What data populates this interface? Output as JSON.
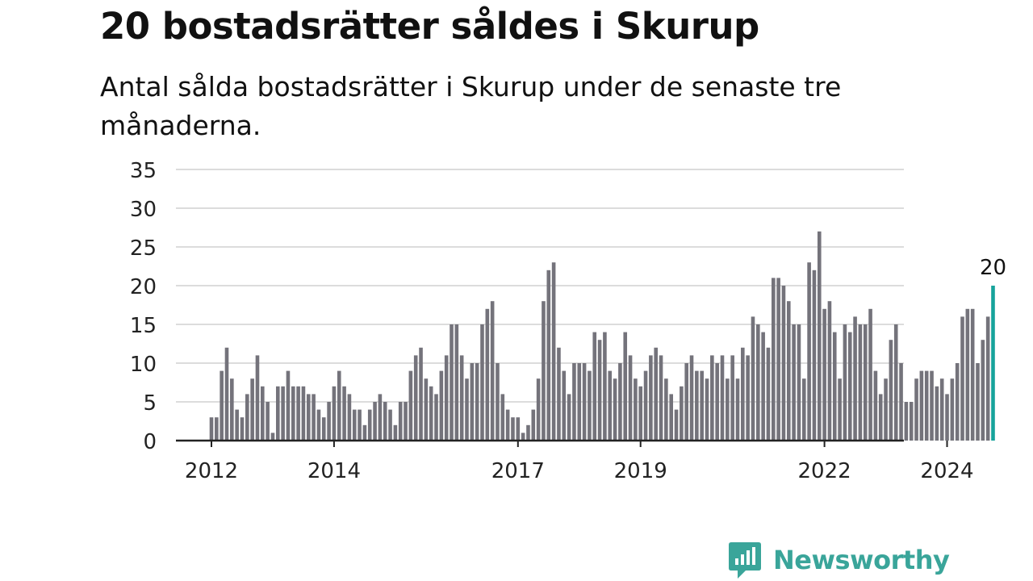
{
  "header": {
    "title": "20 bostadsrätter såldes i Skurup",
    "subtitle": "Antal sålda bostadsrätter i Skurup under de senaste tre månaderna."
  },
  "brand": {
    "name": "Newsworthy",
    "color": "#3aa59a"
  },
  "chart_data": {
    "type": "bar",
    "title": "20 bostadsrätter såldes i Skurup",
    "subtitle": "Antal sålda bostadsrätter i Skurup under de senaste tre månaderna.",
    "xlabel": "",
    "ylabel": "",
    "ylim": [
      0,
      35
    ],
    "yticks": [
      0,
      5,
      10,
      15,
      20,
      25,
      30,
      35
    ],
    "xticks": [
      "2012",
      "2014",
      "2017",
      "2019",
      "2022",
      "2024"
    ],
    "grid": true,
    "bar_color": "#74737b",
    "highlight_color": "#16a39b",
    "highlight_label": "20",
    "start_month": "2012-01",
    "values": [
      3,
      3,
      9,
      12,
      8,
      4,
      3,
      6,
      8,
      11,
      7,
      5,
      1,
      7,
      7,
      9,
      7,
      7,
      7,
      6,
      6,
      4,
      3,
      5,
      7,
      9,
      7,
      6,
      4,
      4,
      2,
      4,
      5,
      6,
      5,
      4,
      2,
      5,
      5,
      9,
      11,
      12,
      8,
      7,
      6,
      9,
      11,
      15,
      15,
      11,
      8,
      10,
      10,
      15,
      17,
      18,
      10,
      6,
      4,
      3,
      3,
      1,
      2,
      4,
      8,
      18,
      22,
      23,
      12,
      9,
      6,
      10,
      10,
      10,
      9,
      14,
      13,
      14,
      9,
      8,
      10,
      14,
      11,
      8,
      7,
      9,
      11,
      12,
      11,
      8,
      6,
      4,
      7,
      10,
      11,
      9,
      9,
      8,
      11,
      10,
      11,
      8,
      11,
      8,
      12,
      11,
      16,
      15,
      14,
      12,
      21,
      21,
      20,
      18,
      15,
      15,
      8,
      23,
      22,
      27,
      17,
      18,
      14,
      8,
      15,
      14,
      16,
      15,
      15,
      17,
      9,
      6,
      8,
      13,
      15,
      10,
      5,
      5,
      8,
      9,
      9,
      9,
      7,
      8,
      6,
      8,
      10,
      16,
      17,
      17,
      10,
      13,
      16,
      20
    ]
  }
}
